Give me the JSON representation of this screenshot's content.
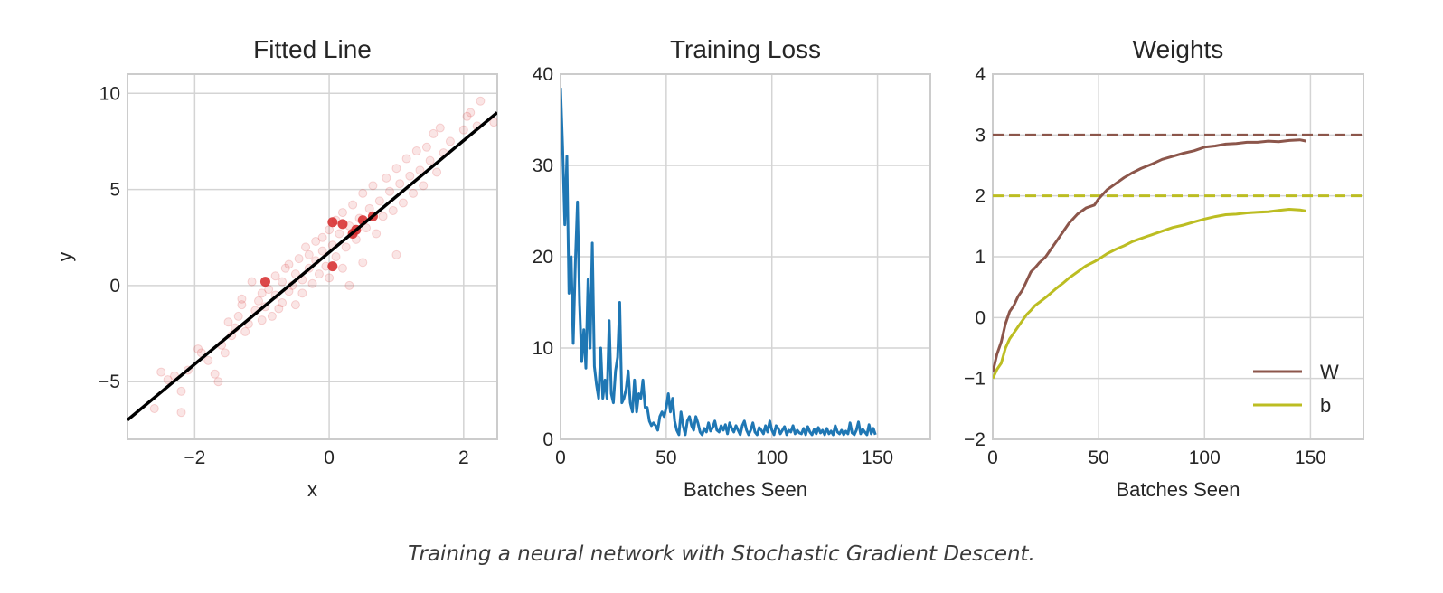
{
  "caption": "Training a neural network with Stochastic Gradient Descent.",
  "colors": {
    "scatter": "#d62728",
    "fit_line": "#000000",
    "loss": "#1f77b4",
    "W": "#8c564b",
    "b": "#bcbd22",
    "grid": "#d4d4d4"
  },
  "chart_data": [
    {
      "type": "scatter",
      "title": "Fitted Line",
      "xlabel": "x",
      "ylabel": "y",
      "xlim": [
        -3.0,
        2.5
      ],
      "ylim": [
        -8.0,
        11.0
      ],
      "xticks": [
        -2,
        0,
        2
      ],
      "yticks": [
        -5,
        0,
        5,
        10
      ],
      "grid": true,
      "series": [
        {
          "kind": "points-faint",
          "color": "#d62728",
          "points": [
            [
              -2.6,
              -6.4
            ],
            [
              -2.5,
              -4.5
            ],
            [
              -2.4,
              -4.9
            ],
            [
              -2.3,
              -4.7
            ],
            [
              -2.2,
              -5.5
            ],
            [
              -2.2,
              -6.6
            ],
            [
              -2.1,
              -4.4
            ],
            [
              -1.95,
              -3.3
            ],
            [
              -1.9,
              -3.5
            ],
            [
              -1.8,
              -3.9
            ],
            [
              -1.7,
              -4.6
            ],
            [
              -1.65,
              -5.0
            ],
            [
              -1.6,
              -3.1
            ],
            [
              -1.55,
              -3.5
            ],
            [
              -1.5,
              -1.9
            ],
            [
              -1.45,
              -2.6
            ],
            [
              -1.4,
              -2.2
            ],
            [
              -1.35,
              -1.6
            ],
            [
              -1.3,
              -0.7
            ],
            [
              -1.3,
              -1.0
            ],
            [
              -1.25,
              -2.4
            ],
            [
              -1.2,
              -2.0
            ],
            [
              -1.15,
              0.2
            ],
            [
              -1.1,
              -1.3
            ],
            [
              -1.05,
              -0.8
            ],
            [
              -1.0,
              -1.8
            ],
            [
              -1.0,
              -0.4
            ],
            [
              -0.95,
              -1.1
            ],
            [
              -0.9,
              -0.2
            ],
            [
              -0.85,
              -1.6
            ],
            [
              -0.8,
              0.5
            ],
            [
              -0.8,
              -0.5
            ],
            [
              -0.75,
              -1.2
            ],
            [
              -0.7,
              0.2
            ],
            [
              -0.7,
              -0.9
            ],
            [
              -0.65,
              0.9
            ],
            [
              -0.6,
              -0.3
            ],
            [
              -0.6,
              1.1
            ],
            [
              -0.55,
              0.0
            ],
            [
              -0.5,
              -1.0
            ],
            [
              -0.5,
              0.6
            ],
            [
              -0.45,
              1.4
            ],
            [
              -0.4,
              0.3
            ],
            [
              -0.4,
              -0.4
            ],
            [
              -0.35,
              2.0
            ],
            [
              -0.3,
              0.9
            ],
            [
              -0.3,
              1.6
            ],
            [
              -0.25,
              0.1
            ],
            [
              -0.2,
              2.3
            ],
            [
              -0.2,
              1.3
            ],
            [
              -0.15,
              0.6
            ],
            [
              -0.1,
              2.5
            ],
            [
              -0.1,
              1.8
            ],
            [
              -0.05,
              1.0
            ],
            [
              0.0,
              2.9
            ],
            [
              0.0,
              0.4
            ],
            [
              0.05,
              2.1
            ],
            [
              0.1,
              3.4
            ],
            [
              0.1,
              1.5
            ],
            [
              0.15,
              2.7
            ],
            [
              0.2,
              3.8
            ],
            [
              0.2,
              0.9
            ],
            [
              0.25,
              2.0
            ],
            [
              0.3,
              3.1
            ],
            [
              0.3,
              0.0
            ],
            [
              0.35,
              4.2
            ],
            [
              0.4,
              2.4
            ],
            [
              0.45,
              3.5
            ],
            [
              0.5,
              4.8
            ],
            [
              0.5,
              1.2
            ],
            [
              0.55,
              3.0
            ],
            [
              0.6,
              4.0
            ],
            [
              0.65,
              5.2
            ],
            [
              0.7,
              2.7
            ],
            [
              0.75,
              4.4
            ],
            [
              0.8,
              3.6
            ],
            [
              0.85,
              5.6
            ],
            [
              0.9,
              4.9
            ],
            [
              0.95,
              3.9
            ],
            [
              1.0,
              6.1
            ],
            [
              1.0,
              1.6
            ],
            [
              1.05,
              5.3
            ],
            [
              1.1,
              4.3
            ],
            [
              1.15,
              6.6
            ],
            [
              1.2,
              5.7
            ],
            [
              1.25,
              4.8
            ],
            [
              1.3,
              7.0
            ],
            [
              1.35,
              6.0
            ],
            [
              1.4,
              5.2
            ],
            [
              1.45,
              7.2
            ],
            [
              1.5,
              6.5
            ],
            [
              1.55,
              7.9
            ],
            [
              1.6,
              5.9
            ],
            [
              1.65,
              8.2
            ],
            [
              1.7,
              6.9
            ],
            [
              1.8,
              7.5
            ],
            [
              2.0,
              8.1
            ],
            [
              2.05,
              8.8
            ],
            [
              2.1,
              9.0
            ],
            [
              2.2,
              8.3
            ],
            [
              2.25,
              9.6
            ],
            [
              2.45,
              8.5
            ]
          ]
        },
        {
          "kind": "points-batch",
          "color": "#d62728",
          "points": [
            [
              -0.95,
              0.2
            ],
            [
              0.05,
              3.3
            ],
            [
              0.05,
              1.0
            ],
            [
              0.2,
              3.2
            ],
            [
              0.35,
              2.7
            ],
            [
              0.4,
              2.9
            ],
            [
              0.5,
              3.4
            ],
            [
              0.65,
              3.6
            ]
          ]
        },
        {
          "kind": "line",
          "name": "",
          "color": "#000000",
          "x": [
            -3.0,
            2.5
          ],
          "y": [
            -7.0,
            9.0
          ]
        }
      ]
    },
    {
      "type": "line",
      "title": "Training Loss",
      "xlabel": "Batches Seen",
      "ylabel": "",
      "xlim": [
        0,
        175
      ],
      "ylim": [
        0,
        40
      ],
      "xticks": [
        0,
        50,
        100,
        150
      ],
      "yticks": [
        0,
        10,
        20,
        30,
        40
      ],
      "grid": true,
      "series": [
        {
          "name": "",
          "color": "#1f77b4",
          "y": [
            38.5,
            32.0,
            23.5,
            31.0,
            16.0,
            20.0,
            10.5,
            19.5,
            26.0,
            15.0,
            8.5,
            12.0,
            7.8,
            17.5,
            10.0,
            21.5,
            8.0,
            6.0,
            4.5,
            10.0,
            4.5,
            6.5,
            4.5,
            13.0,
            5.0,
            4.0,
            7.5,
            9.0,
            15.0,
            4.0,
            4.5,
            5.5,
            7.5,
            4.0,
            3.0,
            6.5,
            3.0,
            5.0,
            4.5,
            6.5,
            3.5,
            3.5,
            2.0,
            1.5,
            1.8,
            1.5,
            1.0,
            2.5,
            3.0,
            2.5,
            3.5,
            5.0,
            3.0,
            4.5,
            2.0,
            1.0,
            0.5,
            3.0,
            1.5,
            0.5,
            2.0,
            2.5,
            1.5,
            1.0,
            2.5,
            1.8,
            0.8,
            0.5,
            1.2,
            0.8,
            1.8,
            0.9,
            1.3,
            2.0,
            1.0,
            0.8,
            1.5,
            1.0,
            1.6,
            0.6,
            1.8,
            1.2,
            0.8,
            1.5,
            1.0,
            0.5,
            1.5,
            2.0,
            1.0,
            0.5,
            1.0,
            1.8,
            0.8,
            0.5,
            1.3,
            1.0,
            0.6,
            1.5,
            0.8,
            2.0,
            1.0,
            0.5,
            1.5,
            1.2,
            0.6,
            1.0,
            1.4,
            0.5,
            1.0,
            0.8,
            1.5,
            0.6,
            1.0,
            0.7,
            0.6,
            1.2,
            0.5,
            1.4,
            0.8,
            0.5,
            1.1,
            0.6,
            1.3,
            0.7,
            1.0,
            0.5,
            1.2,
            0.6,
            0.9,
            0.5,
            1.5,
            0.8,
            0.6,
            1.0,
            0.5,
            0.9,
            0.6,
            1.8,
            0.7,
            0.5,
            1.0,
            1.9,
            0.6,
            1.1,
            0.8,
            0.5,
            1.6,
            0.6,
            1.2,
            0.5
          ]
        }
      ]
    },
    {
      "type": "line",
      "title": "Weights",
      "xlabel": "Batches Seen",
      "ylabel": "",
      "xlim": [
        0,
        175
      ],
      "ylim": [
        -2,
        4
      ],
      "xticks": [
        0,
        50,
        100,
        150
      ],
      "yticks": [
        -2,
        -1,
        0,
        1,
        2,
        3,
        4
      ],
      "grid": true,
      "legend": "lower-right",
      "series": [
        {
          "name": "W",
          "color": "#8c564b",
          "x": [
            0,
            2,
            4,
            6,
            8,
            10,
            12,
            14,
            16,
            18,
            20,
            22,
            25,
            28,
            30,
            33,
            36,
            40,
            44,
            48,
            50,
            54,
            58,
            62,
            66,
            70,
            75,
            80,
            85,
            90,
            95,
            100,
            105,
            110,
            115,
            120,
            125,
            130,
            135,
            140,
            145,
            148
          ],
          "values": [
            -0.9,
            -0.6,
            -0.4,
            -0.1,
            0.1,
            0.2,
            0.35,
            0.45,
            0.6,
            0.75,
            0.82,
            0.9,
            1.0,
            1.15,
            1.25,
            1.4,
            1.55,
            1.7,
            1.8,
            1.85,
            1.95,
            2.1,
            2.2,
            2.3,
            2.38,
            2.45,
            2.52,
            2.6,
            2.65,
            2.7,
            2.74,
            2.8,
            2.82,
            2.85,
            2.86,
            2.88,
            2.88,
            2.9,
            2.89,
            2.91,
            2.92,
            2.9
          ]
        },
        {
          "name": "b",
          "color": "#bcbd22",
          "x": [
            0,
            2,
            4,
            6,
            8,
            10,
            12,
            14,
            16,
            18,
            20,
            22,
            25,
            28,
            30,
            33,
            36,
            40,
            44,
            48,
            50,
            54,
            58,
            62,
            66,
            70,
            75,
            80,
            85,
            90,
            95,
            100,
            105,
            110,
            115,
            120,
            125,
            130,
            135,
            140,
            145,
            148
          ],
          "values": [
            -1.0,
            -0.85,
            -0.75,
            -0.5,
            -0.35,
            -0.25,
            -0.15,
            -0.05,
            0.05,
            0.12,
            0.2,
            0.25,
            0.33,
            0.42,
            0.48,
            0.56,
            0.65,
            0.75,
            0.85,
            0.92,
            0.96,
            1.05,
            1.12,
            1.18,
            1.25,
            1.3,
            1.36,
            1.42,
            1.48,
            1.52,
            1.57,
            1.62,
            1.66,
            1.69,
            1.7,
            1.72,
            1.73,
            1.74,
            1.76,
            1.78,
            1.77,
            1.75
          ]
        }
      ],
      "reference_lines": [
        {
          "series": "W",
          "y": 3,
          "color": "#8c564b",
          "style": "dashed"
        },
        {
          "series": "b",
          "y": 2,
          "color": "#bcbd22",
          "style": "dashed"
        }
      ]
    }
  ]
}
